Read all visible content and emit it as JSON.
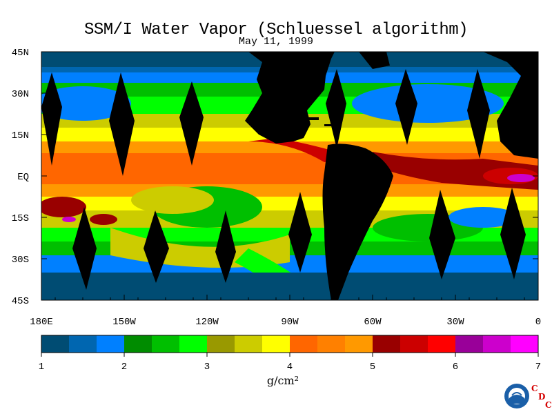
{
  "title": "SSM/I Water Vapor (Schluessel algorithm)",
  "date": "May 11, 1999",
  "lat_labels": [
    "45N",
    "30N",
    "15N",
    "EQ",
    "15S",
    "30S",
    "45S"
  ],
  "lon_labels": [
    "180E",
    "150W",
    "120W",
    "90W",
    "60W",
    "30W",
    "0"
  ],
  "colorbar": {
    "unit": "g/cm²",
    "tick_labels": [
      "1",
      "2",
      "3",
      "4",
      "5",
      "6",
      "7"
    ],
    "colors": [
      "#004c73",
      "#0066b0",
      "#0080ff",
      "#008c00",
      "#00bf00",
      "#00ff00",
      "#999900",
      "#cccc00",
      "#ffff00",
      "#ff6600",
      "#ff8000",
      "#ff9900",
      "#990000",
      "#cc0000",
      "#ff0000",
      "#990099",
      "#cc00cc",
      "#ff00ff"
    ]
  },
  "logo": {
    "name": "NOAA",
    "org": [
      "C",
      "D",
      "C"
    ]
  }
}
